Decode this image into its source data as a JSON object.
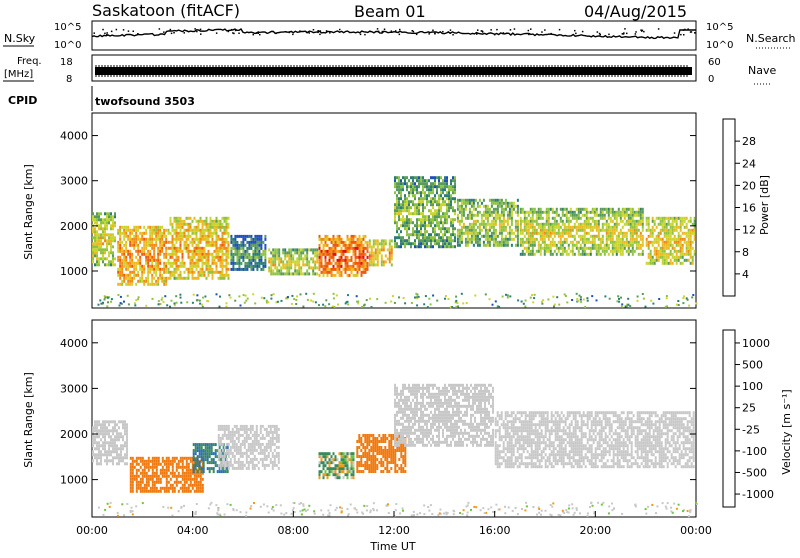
{
  "header": {
    "station": "Saskatoon (fitACF)",
    "beam": "Beam 01",
    "date": "04/Aug/2015"
  },
  "strips": {
    "nsky_label": "N.Sky",
    "nsearch_label": "N.Search",
    "nsky_ticks": [
      "10^5",
      "10^0"
    ],
    "nsearch_ticks": [
      "10^5",
      "10^0"
    ],
    "freq_label_1": "Freq.",
    "freq_label_2": "[MHz]",
    "freq_ticks": [
      "18",
      "8"
    ],
    "nave_label": "Nave",
    "nave_ticks": [
      "60",
      "0"
    ],
    "cpid_label": "CPID",
    "cpid_value": "twofsound 3503"
  },
  "colors": {
    "power_scale": [
      "#1a1aff",
      "#1f4fb8",
      "#2c7d74",
      "#5a9a5a",
      "#8fc442",
      "#cbd530",
      "#f0b820",
      "#f08a18",
      "#f05a10",
      "#e01010"
    ],
    "velocity_scale": [
      "#1a33c8",
      "#2e6fb0",
      "#3a8a5a",
      "#6fc43a",
      "#c8c8c8",
      "#c8c8c8",
      "#f29a1a",
      "#f07a10",
      "#f05010",
      "#e01010"
    ]
  },
  "chart_data": [
    {
      "type": "heatmap",
      "name": "power",
      "ylabel": "Slant Range [km]",
      "ylim": [
        180,
        4500
      ],
      "yticks": [
        "1000",
        "2000",
        "3000",
        "4000"
      ],
      "xlim": [
        "00:00",
        "24:00"
      ],
      "colorbar_label": "Power [dB]",
      "colorbar_ticks": [
        "4",
        "8",
        "12",
        "16",
        "20",
        "24",
        "28"
      ],
      "colorbar_range": [
        0,
        30
      ],
      "regions": [
        {
          "t0": 0.0,
          "t1": 1.0,
          "r0": 1100,
          "r1": 2300,
          "level": 18
        },
        {
          "t0": 1.0,
          "t1": 3.0,
          "r0": 650,
          "r1": 2000,
          "level": 24
        },
        {
          "t0": 3.0,
          "t1": 5.5,
          "r0": 800,
          "r1": 2200,
          "level": 22
        },
        {
          "t0": 5.5,
          "t1": 7.0,
          "r0": 1000,
          "r1": 1800,
          "level": 10
        },
        {
          "t0": 7.0,
          "t1": 9.0,
          "r0": 900,
          "r1": 1500,
          "level": 18
        },
        {
          "t0": 9.0,
          "t1": 11.0,
          "r0": 850,
          "r1": 1800,
          "level": 27
        },
        {
          "t0": 11.0,
          "t1": 12.0,
          "r0": 1100,
          "r1": 1700,
          "level": 22
        },
        {
          "t0": 12.0,
          "t1": 14.5,
          "r0": 1500,
          "r1": 3100,
          "level": 14
        },
        {
          "t0": 14.5,
          "t1": 17.0,
          "r0": 1500,
          "r1": 2600,
          "level": 16
        },
        {
          "t0": 17.0,
          "t1": 22.0,
          "r0": 1300,
          "r1": 2400,
          "level": 18
        },
        {
          "t0": 22.0,
          "t1": 24.0,
          "r0": 1100,
          "r1": 2200,
          "level": 20
        }
      ]
    },
    {
      "type": "heatmap",
      "name": "velocity",
      "ylabel": "Slant Range [km]",
      "ylim": [
        180,
        4500
      ],
      "yticks": [
        "1000",
        "2000",
        "3000",
        "4000"
      ],
      "xlim": [
        "00:00",
        "24:00"
      ],
      "xticks": [
        "00:00",
        "04:00",
        "08:00",
        "12:00",
        "16:00",
        "20:00",
        "00:00"
      ],
      "xlabel": "Time UT",
      "colorbar_label": "Velocity [m s⁻¹]",
      "colorbar_ticks": [
        "1000",
        "500",
        "100",
        "25",
        "-25",
        "-100",
        "-500",
        "-1000"
      ],
      "regions": [
        {
          "t0": 0.0,
          "t1": 1.5,
          "r0": 1300,
          "r1": 2300,
          "vel": 0
        },
        {
          "t0": 1.5,
          "t1": 4.5,
          "r0": 700,
          "r1": 1500,
          "vel": -300
        },
        {
          "t0": 4.0,
          "t1": 5.5,
          "r0": 1100,
          "r1": 1800,
          "vel": 300
        },
        {
          "t0": 5.0,
          "t1": 7.5,
          "r0": 1200,
          "r1": 2200,
          "vel": 0
        },
        {
          "t0": 9.0,
          "t1": 10.5,
          "r0": 1000,
          "r1": 1600,
          "vel": 60
        },
        {
          "t0": 10.5,
          "t1": 12.5,
          "r0": 1100,
          "r1": 2000,
          "vel": -300
        },
        {
          "t0": 12.0,
          "t1": 16.0,
          "r0": 1700,
          "r1": 3100,
          "vel": 0
        },
        {
          "t0": 16.0,
          "t1": 24.0,
          "r0": 1200,
          "r1": 2500,
          "vel": 0
        }
      ]
    }
  ]
}
